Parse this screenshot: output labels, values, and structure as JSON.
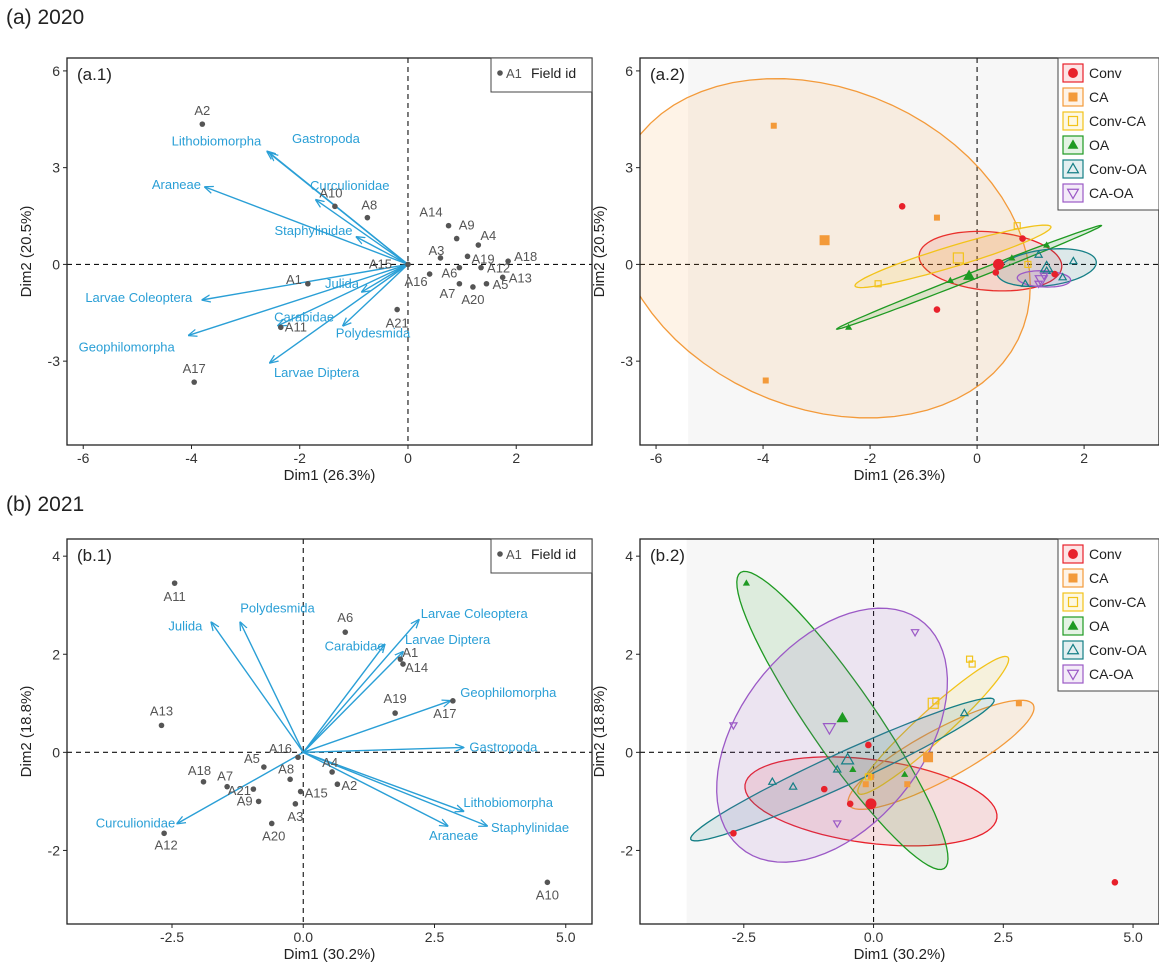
{
  "figure": {
    "section_a_title": "(a) 2020",
    "section_b_title": "(b) 2021"
  },
  "chart_data": [
    {
      "id": "a1",
      "type": "scatter",
      "panel_label": "(a.1)",
      "title": "",
      "xlabel": "Dim1 (26.3%)",
      "ylabel": "Dim2 (20.5%)",
      "xlim": [
        -6.3,
        3.4
      ],
      "ylim": [
        -5.6,
        6.4
      ],
      "xticks": [
        -6,
        -4,
        -2,
        0,
        2
      ],
      "yticks": [
        -3,
        0,
        3,
        6
      ],
      "grid": false,
      "point_legend": {
        "symbol_label": "A1",
        "title": "Field id"
      },
      "points": [
        {
          "label": "A1",
          "x": -1.85,
          "y": -0.6
        },
        {
          "label": "A2",
          "x": -3.8,
          "y": 4.35
        },
        {
          "label": "A3",
          "x": 0.6,
          "y": 0.2
        },
        {
          "label": "A4",
          "x": 1.3,
          "y": 0.6
        },
        {
          "label": "A5",
          "x": 1.45,
          "y": -0.6
        },
        {
          "label": "A6",
          "x": 0.95,
          "y": -0.1
        },
        {
          "label": "A7",
          "x": 0.95,
          "y": -0.6
        },
        {
          "label": "A8",
          "x": -0.75,
          "y": 1.45
        },
        {
          "label": "A9",
          "x": 0.9,
          "y": 0.8
        },
        {
          "label": "A10",
          "x": -1.35,
          "y": 1.8
        },
        {
          "label": "A12",
          "x": 1.35,
          "y": -0.1
        },
        {
          "label": "A11",
          "x": -2.35,
          "y": -1.95
        },
        {
          "label": "A13",
          "x": 1.75,
          "y": -0.4
        },
        {
          "label": "A14",
          "x": 0.75,
          "y": 1.2
        },
        {
          "label": "A15",
          "x": 0.0,
          "y": 0.0
        },
        {
          "label": "A16",
          "x": 0.4,
          "y": -0.3
        },
        {
          "label": "A17",
          "x": -3.95,
          "y": -3.65
        },
        {
          "label": "A18",
          "x": 1.85,
          "y": 0.1
        },
        {
          "label": "A19",
          "x": 1.1,
          "y": 0.25
        },
        {
          "label": "A20",
          "x": 1.2,
          "y": -0.7
        },
        {
          "label": "A21",
          "x": -0.2,
          "y": -1.4
        }
      ],
      "vectors": [
        {
          "name": "Gastropoda",
          "x": -2.55,
          "y": 3.45
        },
        {
          "name": "Lithobiomorpha",
          "x": -2.6,
          "y": 3.5
        },
        {
          "name": "Araneae",
          "x": -3.75,
          "y": 2.4
        },
        {
          "name": "Curculionidae",
          "x": -1.7,
          "y": 2.0
        },
        {
          "name": "Staphylinidae",
          "x": -0.95,
          "y": 0.85
        },
        {
          "name": "Larvae Coleoptera",
          "x": -3.8,
          "y": -1.1
        },
        {
          "name": "Geophilomorpha",
          "x": -4.05,
          "y": -2.2
        },
        {
          "name": "Carabidae",
          "x": -2.4,
          "y": -1.9
        },
        {
          "name": "Julida",
          "x": -0.85,
          "y": -0.85
        },
        {
          "name": "Polydesmida",
          "x": -1.2,
          "y": -1.9
        },
        {
          "name": "Larvae Diptera",
          "x": -2.55,
          "y": -3.05
        }
      ]
    },
    {
      "id": "a2",
      "type": "scatter",
      "panel_label": "(a.2)",
      "title": "",
      "xlabel": "Dim1 (26.3%)",
      "ylabel": "Dim2 (20.5%)",
      "xlim": [
        -6.3,
        3.4
      ],
      "ylim": [
        -5.6,
        6.4
      ],
      "xticks": [
        -6,
        -4,
        -2,
        0,
        2
      ],
      "yticks": [
        -3,
        0,
        3,
        6
      ],
      "grid": false,
      "legend_position": "top-right",
      "groups": [
        {
          "name": "Conv",
          "color": "#e8212b",
          "shape": "circle",
          "points": [
            [
              -1.4,
              1.8
            ],
            [
              -0.75,
              -1.4
            ],
            [
              0.35,
              -0.25
            ],
            [
              0.85,
              0.8
            ],
            [
              1.45,
              -0.3
            ]
          ],
          "centroid": [
            0.4,
            0.0
          ],
          "ellipse": {
            "cx": 0.25,
            "cy": 0.1,
            "rx": 1.35,
            "ry": 0.9,
            "angle": -12
          }
        },
        {
          "name": "CA",
          "color": "#f39a3a",
          "shape": "square",
          "points": [
            [
              -3.8,
              4.3
            ],
            [
              -3.95,
              -3.6
            ],
            [
              -0.75,
              1.45
            ]
          ],
          "centroid": [
            -2.85,
            0.75
          ],
          "ellipse": {
            "cx": -2.9,
            "cy": 0.5,
            "rx": 3.7,
            "ry": 5.4,
            "angle": 18
          }
        },
        {
          "name": "Conv-CA",
          "color": "#f2c31a",
          "shape": "square-open",
          "points": [
            [
              -1.85,
              -0.6
            ],
            [
              0.75,
              1.2
            ],
            [
              0.95,
              0.0
            ]
          ],
          "centroid": [
            -0.35,
            0.2
          ],
          "ellipse": {
            "cx": -0.45,
            "cy": 0.25,
            "rx": 2.05,
            "ry": 0.3,
            "angle": 27
          }
        },
        {
          "name": "OA",
          "color": "#1e9a22",
          "shape": "triangle",
          "points": [
            [
              -2.4,
              -1.95
            ],
            [
              0.65,
              0.2
            ],
            [
              1.3,
              0.6
            ],
            [
              -0.5,
              -0.5
            ]
          ],
          "centroid": [
            -0.15,
            -0.35
          ],
          "ellipse": {
            "cx": -0.15,
            "cy": -0.4,
            "rx": 2.95,
            "ry": 0.1,
            "angle": 33
          }
        },
        {
          "name": "Conv-OA",
          "color": "#157f86",
          "shape": "triangle-open",
          "points": [
            [
              1.15,
              0.3
            ],
            [
              1.6,
              -0.4
            ],
            [
              1.8,
              0.1
            ],
            [
              1.3,
              -0.2
            ],
            [
              0.9,
              -0.6
            ]
          ],
          "centroid": [
            1.3,
            -0.1
          ],
          "ellipse": {
            "cx": 1.3,
            "cy": -0.1,
            "rx": 0.95,
            "ry": 0.55,
            "angle": 15
          }
        },
        {
          "name": "CA-OA",
          "color": "#9b59c6",
          "shape": "triangle-down-open",
          "points": [
            [
              1.25,
              -0.35
            ],
            [
              1.15,
              -0.6
            ]
          ],
          "centroid": [
            1.2,
            -0.48
          ],
          "ellipse": {
            "cx": 1.25,
            "cy": -0.45,
            "rx": 0.5,
            "ry": 0.25,
            "angle": -5
          }
        }
      ]
    },
    {
      "id": "b1",
      "type": "scatter",
      "panel_label": "(b.1)",
      "title": "",
      "xlabel": "Dim1 (30.2%)",
      "ylabel": "Dim2 (18.8%)",
      "xlim": [
        -4.5,
        5.5
      ],
      "ylim": [
        -3.5,
        4.35
      ],
      "xticks": [
        -2.5,
        0.0,
        2.5,
        5.0
      ],
      "yticks": [
        -2,
        0,
        2,
        4
      ],
      "grid": false,
      "point_legend": {
        "symbol_label": "A1",
        "title": "Field id"
      },
      "points": [
        {
          "label": "A1",
          "x": 1.85,
          "y": 1.9
        },
        {
          "label": "A2",
          "x": 0.65,
          "y": -0.65
        },
        {
          "label": "A3",
          "x": -0.15,
          "y": -1.05
        },
        {
          "label": "A4",
          "x": 0.55,
          "y": -0.4
        },
        {
          "label": "A5",
          "x": -0.75,
          "y": -0.3
        },
        {
          "label": "A6",
          "x": 0.8,
          "y": 2.45
        },
        {
          "label": "A7",
          "x": -1.45,
          "y": -0.7
        },
        {
          "label": "A8",
          "x": -0.25,
          "y": -0.55
        },
        {
          "label": "A9",
          "x": -0.85,
          "y": -1.0
        },
        {
          "label": "A10",
          "x": 4.65,
          "y": -2.65
        },
        {
          "label": "A11",
          "x": -2.45,
          "y": 3.45
        },
        {
          "label": "A12",
          "x": -2.65,
          "y": -1.65
        },
        {
          "label": "A13",
          "x": -2.7,
          "y": 0.55
        },
        {
          "label": "A14",
          "x": 1.9,
          "y": 1.8
        },
        {
          "label": "A15",
          "x": -0.05,
          "y": -0.8
        },
        {
          "label": "A16",
          "x": -0.1,
          "y": -0.1
        },
        {
          "label": "A17",
          "x": 2.85,
          "y": 1.05
        },
        {
          "label": "A18",
          "x": -1.9,
          "y": -0.6
        },
        {
          "label": "A19",
          "x": 1.75,
          "y": 0.8
        },
        {
          "label": "A20",
          "x": -0.6,
          "y": -1.45
        },
        {
          "label": "A21",
          "x": -0.95,
          "y": -0.75
        }
      ],
      "vectors": [
        {
          "name": "Julida",
          "x": -1.75,
          "y": 2.65
        },
        {
          "name": "Polydesmida",
          "x": -1.2,
          "y": 2.65
        },
        {
          "name": "Carabidae",
          "x": 1.55,
          "y": 2.2
        },
        {
          "name": "Larvae Coleoptera",
          "x": 2.2,
          "y": 2.7
        },
        {
          "name": "Larvae Diptera",
          "x": 1.9,
          "y": 2.05
        },
        {
          "name": "Geophilomorpha",
          "x": 2.8,
          "y": 1.05
        },
        {
          "name": "Gastropoda",
          "x": 3.05,
          "y": 0.1
        },
        {
          "name": "Lithobiomorpha",
          "x": 3.05,
          "y": -1.2
        },
        {
          "name": "Staphylinidae",
          "x": 3.5,
          "y": -1.5
        },
        {
          "name": "Araneae",
          "x": 2.75,
          "y": -1.5
        },
        {
          "name": "Curculionidae",
          "x": -2.4,
          "y": -1.45
        }
      ]
    },
    {
      "id": "b2",
      "type": "scatter",
      "panel_label": "(b.2)",
      "title": "",
      "xlabel": "Dim1 (30.2%)",
      "ylabel": "Dim2 (18.8%)",
      "xlim": [
        -4.5,
        5.5
      ],
      "ylim": [
        -3.5,
        4.35
      ],
      "xticks": [
        -2.5,
        0.0,
        2.5,
        5.0
      ],
      "yticks": [
        -2,
        0,
        2,
        4
      ],
      "grid": false,
      "legend_position": "top-right",
      "groups": [
        {
          "name": "Conv",
          "color": "#e8212b",
          "shape": "circle",
          "points": [
            [
              -2.7,
              -1.65
            ],
            [
              -0.95,
              -0.75
            ],
            [
              -0.1,
              0.15
            ],
            [
              4.65,
              -2.65
            ],
            [
              -0.45,
              -1.05
            ]
          ],
          "centroid": [
            -0.05,
            -1.05
          ],
          "ellipse": {
            "cx": -0.05,
            "cy": -1.0,
            "rx": 2.45,
            "ry": 0.85,
            "angle": -8
          }
        },
        {
          "name": "CA",
          "color": "#f39a3a",
          "shape": "square",
          "points": [
            [
              2.8,
              1.0
            ],
            [
              0.65,
              -0.65
            ],
            [
              -0.15,
              -0.65
            ],
            [
              1.05,
              -0.1
            ],
            [
              -0.05,
              -0.5
            ]
          ],
          "centroid": [
            1.05,
            -0.1
          ],
          "ellipse": {
            "cx": 1.3,
            "cy": -0.05,
            "rx": 2.05,
            "ry": 0.5,
            "angle": 30
          }
        },
        {
          "name": "Conv-CA",
          "color": "#f2c31a",
          "shape": "square-open",
          "points": [
            [
              1.85,
              1.9
            ],
            [
              1.9,
              1.8
            ],
            [
              -0.1,
              -0.5
            ],
            [
              1.2,
              1.05
            ]
          ],
          "centroid": [
            1.15,
            1.0
          ],
          "ellipse": {
            "cx": 1.15,
            "cy": 0.55,
            "rx": 2.0,
            "ry": 0.3,
            "angle": 44
          }
        },
        {
          "name": "OA",
          "color": "#1e9a22",
          "shape": "triangle",
          "points": [
            [
              -2.45,
              3.45
            ],
            [
              0.6,
              -0.45
            ],
            [
              -0.4,
              -0.35
            ]
          ],
          "centroid": [
            -0.6,
            0.7
          ],
          "ellipse": {
            "cx": -0.6,
            "cy": 0.65,
            "rx": 3.6,
            "ry": 0.65,
            "angle": -57
          }
        },
        {
          "name": "Conv-OA",
          "color": "#157f86",
          "shape": "triangle-open",
          "points": [
            [
              -1.95,
              -0.6
            ],
            [
              -1.55,
              -0.7
            ],
            [
              -0.7,
              -0.35
            ],
            [
              1.75,
              0.8
            ]
          ],
          "centroid": [
            -0.5,
            -0.15
          ],
          "ellipse": {
            "cx": -0.6,
            "cy": -0.35,
            "rx": 3.25,
            "ry": 0.33,
            "angle": 26
          }
        },
        {
          "name": "CA-OA",
          "color": "#9b59c6",
          "shape": "triangle-down-open",
          "points": [
            [
              -2.7,
              0.55
            ],
            [
              0.8,
              2.45
            ],
            [
              -0.7,
              -1.45
            ]
          ],
          "centroid": [
            -0.85,
            0.5
          ],
          "ellipse": {
            "cx": -0.8,
            "cy": 0.35,
            "rx": 2.9,
            "ry": 1.8,
            "angle": 55
          }
        }
      ]
    }
  ]
}
